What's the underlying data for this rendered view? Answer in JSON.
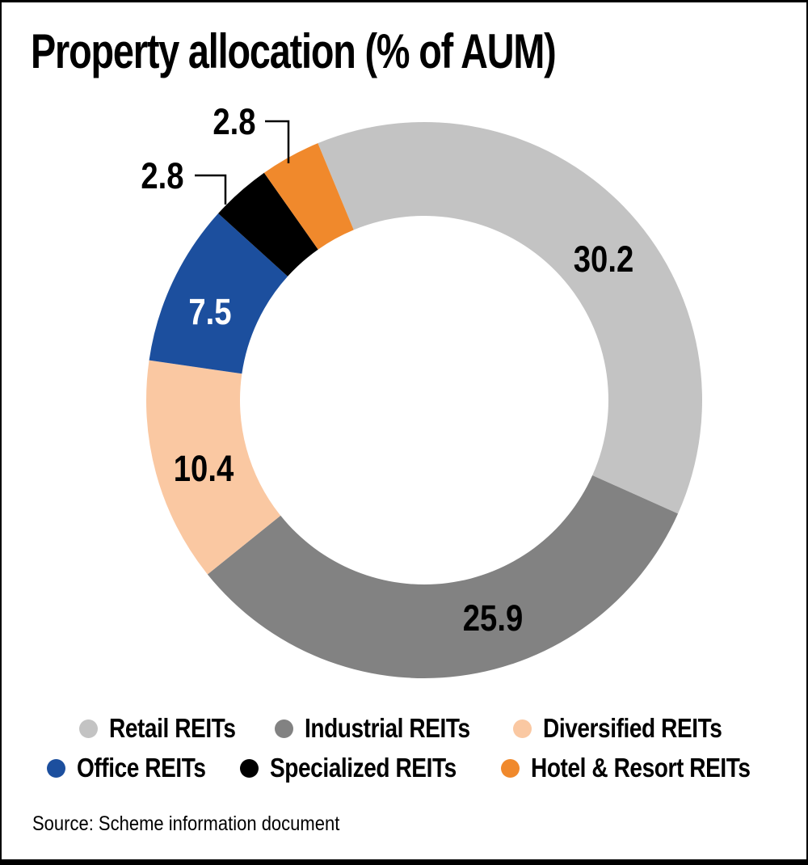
{
  "title": "Property allocation (% of AUM)",
  "source_note": "Source: Scheme information document",
  "chart_data": {
    "type": "pie",
    "subtype": "donut",
    "title": "Property allocation (% of AUM)",
    "unit": "% of AUM",
    "legend_position": "bottom",
    "start_angle_deg": -22.5,
    "donut_hole_ratio": 0.66,
    "series": [
      {
        "label": "Retail REITs",
        "value": 30.2,
        "color": "#c3c3c3",
        "value_label_color": "#000000",
        "value_label_placement": "inside"
      },
      {
        "label": "Industrial REITs",
        "value": 25.9,
        "color": "#828282",
        "value_label_color": "#000000",
        "value_label_placement": "inside"
      },
      {
        "label": "Diversified REITs",
        "value": 10.4,
        "color": "#fac8a2",
        "value_label_color": "#000000",
        "value_label_placement": "inside"
      },
      {
        "label": "Office REITs",
        "value": 7.5,
        "color": "#1c4f9e",
        "value_label_color": "#ffffff",
        "value_label_placement": "inside"
      },
      {
        "label": "Specialized REITs",
        "value": 2.8,
        "color": "#000000",
        "value_label_color": "#000000",
        "value_label_placement": "outside"
      },
      {
        "label": "Hotel & Resort REITs",
        "value": 2.8,
        "color": "#f0892c",
        "value_label_color": "#000000",
        "value_label_placement": "outside"
      }
    ]
  }
}
